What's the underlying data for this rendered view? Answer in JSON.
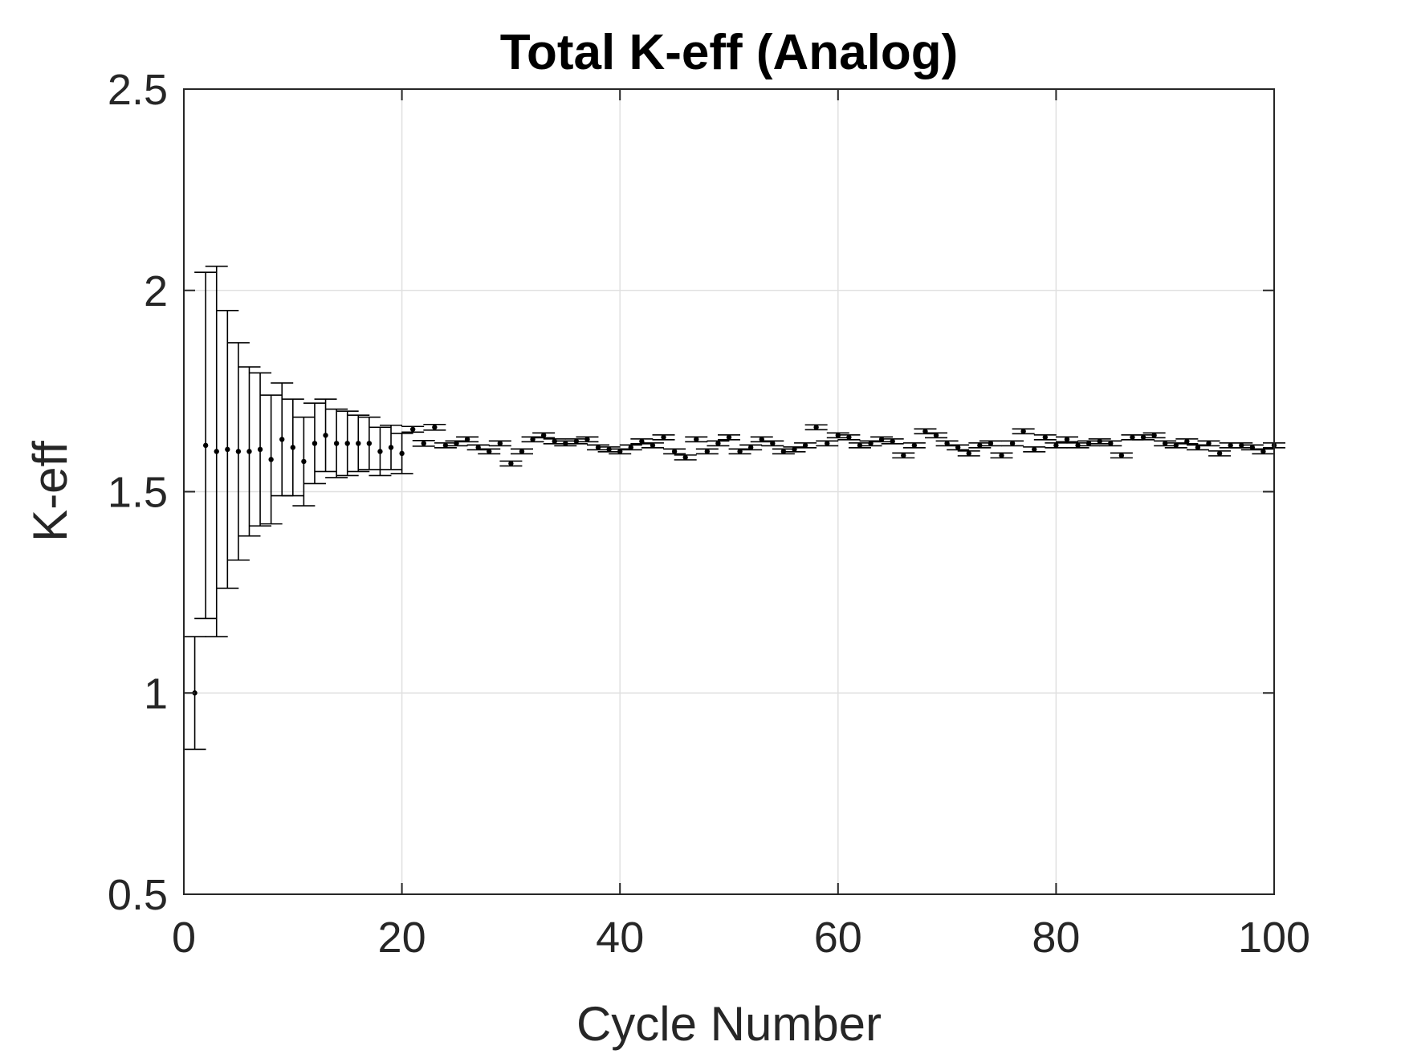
{
  "chart_data": {
    "type": "scatter",
    "title": "Total K-eff (Analog)",
    "xlabel": "Cycle Number",
    "ylabel": "K-eff",
    "xlim": [
      0,
      100
    ],
    "ylim": [
      0.5,
      2.5
    ],
    "grid": true,
    "xticks": [
      "0",
      "20",
      "40",
      "60",
      "80",
      "100"
    ],
    "yticks": [
      "0.5",
      "1",
      "1.5",
      "2",
      "2.5"
    ],
    "colors": {
      "marker": "#000000",
      "axis": "#262626",
      "grid": "#e0e0e0"
    },
    "series": [
      {
        "x": [
          1,
          2,
          3,
          4,
          5,
          6,
          7,
          8,
          9,
          10,
          11,
          12,
          13,
          14,
          15,
          16,
          17,
          18,
          19,
          20,
          21,
          22,
          23,
          24,
          25,
          26,
          27,
          28,
          29,
          30,
          31,
          32,
          33,
          34,
          35,
          36,
          37,
          38,
          39,
          40,
          41,
          42,
          43,
          44,
          45,
          46,
          47,
          48,
          49,
          50,
          51,
          52,
          53,
          54,
          55,
          56,
          57,
          58,
          59,
          60,
          61,
          62,
          63,
          64,
          65,
          66,
          67,
          68,
          69,
          70,
          71,
          72,
          73,
          74,
          75,
          76,
          77,
          78,
          79,
          80,
          81,
          82,
          83,
          84,
          85,
          86,
          87,
          88,
          89,
          90,
          91,
          92,
          93,
          94,
          95,
          96,
          97,
          98,
          99,
          100
        ],
        "y": [
          1.0,
          1.615,
          1.6,
          1.605,
          1.6,
          1.6,
          1.605,
          1.58,
          1.63,
          1.61,
          1.575,
          1.62,
          1.64,
          1.62,
          1.62,
          1.62,
          1.62,
          1.6,
          1.61,
          1.595,
          1.655,
          1.62,
          1.66,
          1.615,
          1.62,
          1.63,
          1.61,
          1.6,
          1.62,
          1.57,
          1.6,
          1.63,
          1.64,
          1.625,
          1.62,
          1.625,
          1.63,
          1.61,
          1.605,
          1.6,
          1.61,
          1.625,
          1.615,
          1.635,
          1.6,
          1.585,
          1.63,
          1.6,
          1.62,
          1.635,
          1.6,
          1.61,
          1.63,
          1.62,
          1.6,
          1.605,
          1.615,
          1.66,
          1.62,
          1.64,
          1.635,
          1.615,
          1.62,
          1.63,
          1.625,
          1.59,
          1.615,
          1.65,
          1.64,
          1.62,
          1.61,
          1.595,
          1.615,
          1.62,
          1.59,
          1.62,
          1.65,
          1.605,
          1.635,
          1.615,
          1.63,
          1.615,
          1.62,
          1.625,
          1.62,
          1.59,
          1.635,
          1.635,
          1.64,
          1.62,
          1.615,
          1.625,
          1.61,
          1.62,
          1.595,
          1.615,
          1.615,
          1.61,
          1.6,
          1.615
        ],
        "err": [
          0.14,
          0.43,
          0.46,
          0.345,
          0.27,
          0.21,
          0.19,
          0.16,
          0.14,
          0.12,
          0.11,
          0.1,
          0.09,
          0.085,
          0.08,
          0.07,
          0.065,
          0.06,
          0.055,
          0.05,
          0.007,
          0.007,
          0.007,
          0.006,
          0.006,
          0.006,
          0.006,
          0.006,
          0.006,
          0.006,
          0.006,
          0.006,
          0.006,
          0.006,
          0.006,
          0.006,
          0.006,
          0.006,
          0.006,
          0.006,
          0.006,
          0.006,
          0.006,
          0.006,
          0.006,
          0.006,
          0.006,
          0.006,
          0.006,
          0.006,
          0.006,
          0.006,
          0.006,
          0.006,
          0.006,
          0.006,
          0.006,
          0.006,
          0.006,
          0.006,
          0.006,
          0.006,
          0.006,
          0.006,
          0.006,
          0.006,
          0.006,
          0.006,
          0.006,
          0.006,
          0.006,
          0.006,
          0.006,
          0.006,
          0.006,
          0.006,
          0.006,
          0.006,
          0.006,
          0.006,
          0.006,
          0.006,
          0.006,
          0.006,
          0.006,
          0.006,
          0.006,
          0.006,
          0.006,
          0.006,
          0.006,
          0.006,
          0.006,
          0.006,
          0.006,
          0.006,
          0.006,
          0.006,
          0.006,
          0.006
        ]
      }
    ]
  }
}
